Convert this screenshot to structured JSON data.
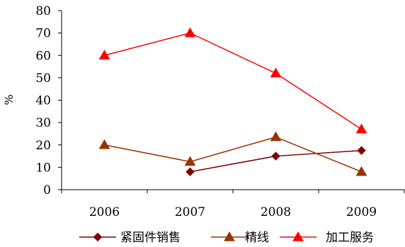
{
  "chart_data": {
    "type": "line",
    "x": [
      "2006",
      "2007",
      "2008",
      "2009"
    ],
    "ylabel": "%",
    "ylim": [
      0,
      80
    ],
    "yticks": [
      "0",
      "10",
      "20",
      "30",
      "40",
      "50",
      "60",
      "70",
      "80"
    ],
    "grid": false,
    "legend_position": "bottom",
    "series": [
      {
        "name": "紧固件销售",
        "marker": "diamond",
        "color": "#800000",
        "values": [
          null,
          8,
          15,
          17.5
        ]
      },
      {
        "name": "精线",
        "marker": "triangle",
        "color": "#993300",
        "values": [
          20,
          12.5,
          23.5,
          8
        ]
      },
      {
        "name": "加工服务",
        "marker": "triangle",
        "color": "#ff0000",
        "values": [
          60,
          70,
          52,
          27
        ]
      }
    ]
  }
}
